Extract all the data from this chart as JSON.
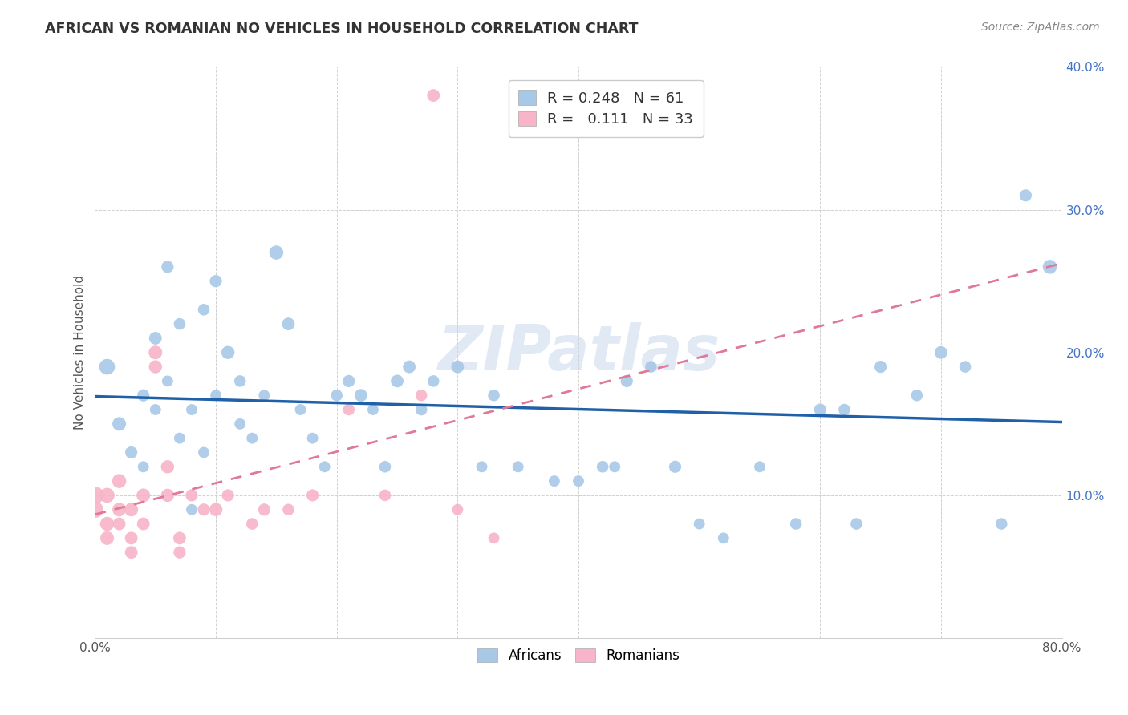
{
  "title": "AFRICAN VS ROMANIAN NO VEHICLES IN HOUSEHOLD CORRELATION CHART",
  "source": "Source: ZipAtlas.com",
  "ylabel": "No Vehicles in Household",
  "xlim": [
    0.0,
    0.8
  ],
  "ylim": [
    0.0,
    0.4
  ],
  "xticks": [
    0.0,
    0.1,
    0.2,
    0.3,
    0.4,
    0.5,
    0.6,
    0.7,
    0.8
  ],
  "yticks": [
    0.0,
    0.1,
    0.2,
    0.3,
    0.4
  ],
  "xtick_labels": [
    "0.0%",
    "",
    "",
    "",
    "",
    "",
    "",
    "",
    "80.0%"
  ],
  "ytick_labels": [
    "",
    "10.0%",
    "20.0%",
    "30.0%",
    "40.0%"
  ],
  "legend_R_african": "0.248",
  "legend_N_african": "61",
  "legend_R_romanian": "0.111",
  "legend_N_romanian": "33",
  "watermark": "ZIPatlas",
  "african_color": "#a8c8e8",
  "romanian_color": "#f8b4c8",
  "african_line_color": "#2060a8",
  "romanian_line_color": "#e07898",
  "african_x": [
    0.01,
    0.02,
    0.03,
    0.04,
    0.04,
    0.05,
    0.05,
    0.06,
    0.06,
    0.07,
    0.07,
    0.08,
    0.09,
    0.09,
    0.1,
    0.1,
    0.11,
    0.12,
    0.12,
    0.13,
    0.14,
    0.15,
    0.16,
    0.17,
    0.18,
    0.19,
    0.2,
    0.21,
    0.22,
    0.23,
    0.24,
    0.25,
    0.26,
    0.28,
    0.3,
    0.32,
    0.35,
    0.38,
    0.4,
    0.42,
    0.44,
    0.46,
    0.48,
    0.5,
    0.52,
    0.55,
    0.58,
    0.6,
    0.63,
    0.65,
    0.68,
    0.7,
    0.72,
    0.75,
    0.77,
    0.79,
    0.62,
    0.43,
    0.33,
    0.27,
    0.08
  ],
  "african_y": [
    0.19,
    0.15,
    0.13,
    0.17,
    0.12,
    0.21,
    0.16,
    0.26,
    0.18,
    0.22,
    0.14,
    0.16,
    0.23,
    0.13,
    0.25,
    0.17,
    0.2,
    0.15,
    0.18,
    0.14,
    0.17,
    0.27,
    0.22,
    0.16,
    0.14,
    0.12,
    0.17,
    0.18,
    0.17,
    0.16,
    0.12,
    0.18,
    0.19,
    0.18,
    0.19,
    0.12,
    0.12,
    0.11,
    0.11,
    0.12,
    0.18,
    0.19,
    0.12,
    0.08,
    0.07,
    0.12,
    0.08,
    0.16,
    0.08,
    0.19,
    0.17,
    0.2,
    0.19,
    0.08,
    0.31,
    0.26,
    0.16,
    0.12,
    0.17,
    0.16,
    0.09
  ],
  "african_size": [
    200,
    150,
    120,
    120,
    100,
    130,
    100,
    120,
    100,
    110,
    100,
    100,
    110,
    100,
    120,
    100,
    140,
    100,
    110,
    100,
    100,
    160,
    130,
    100,
    100,
    100,
    110,
    120,
    130,
    100,
    110,
    130,
    130,
    110,
    130,
    100,
    100,
    100,
    100,
    110,
    120,
    110,
    120,
    100,
    100,
    100,
    110,
    120,
    110,
    120,
    110,
    130,
    110,
    110,
    120,
    160,
    110,
    100,
    110,
    110,
    100
  ],
  "romanian_x": [
    0.0,
    0.0,
    0.01,
    0.01,
    0.01,
    0.02,
    0.02,
    0.02,
    0.03,
    0.03,
    0.03,
    0.04,
    0.04,
    0.05,
    0.05,
    0.06,
    0.06,
    0.07,
    0.07,
    0.08,
    0.09,
    0.1,
    0.11,
    0.13,
    0.14,
    0.16,
    0.18,
    0.21,
    0.24,
    0.27,
    0.3,
    0.33,
    0.28
  ],
  "romanian_y": [
    0.1,
    0.09,
    0.1,
    0.08,
    0.07,
    0.11,
    0.09,
    0.08,
    0.09,
    0.07,
    0.06,
    0.1,
    0.08,
    0.2,
    0.19,
    0.1,
    0.12,
    0.07,
    0.06,
    0.1,
    0.09,
    0.09,
    0.1,
    0.08,
    0.09,
    0.09,
    0.1,
    0.16,
    0.1,
    0.17,
    0.09,
    0.07,
    0.38
  ],
  "romanian_size": [
    250,
    220,
    180,
    160,
    150,
    160,
    150,
    130,
    150,
    130,
    130,
    150,
    130,
    150,
    140,
    140,
    140,
    130,
    120,
    120,
    120,
    140,
    120,
    110,
    120,
    110,
    120,
    110,
    110,
    110,
    100,
    100,
    130
  ]
}
